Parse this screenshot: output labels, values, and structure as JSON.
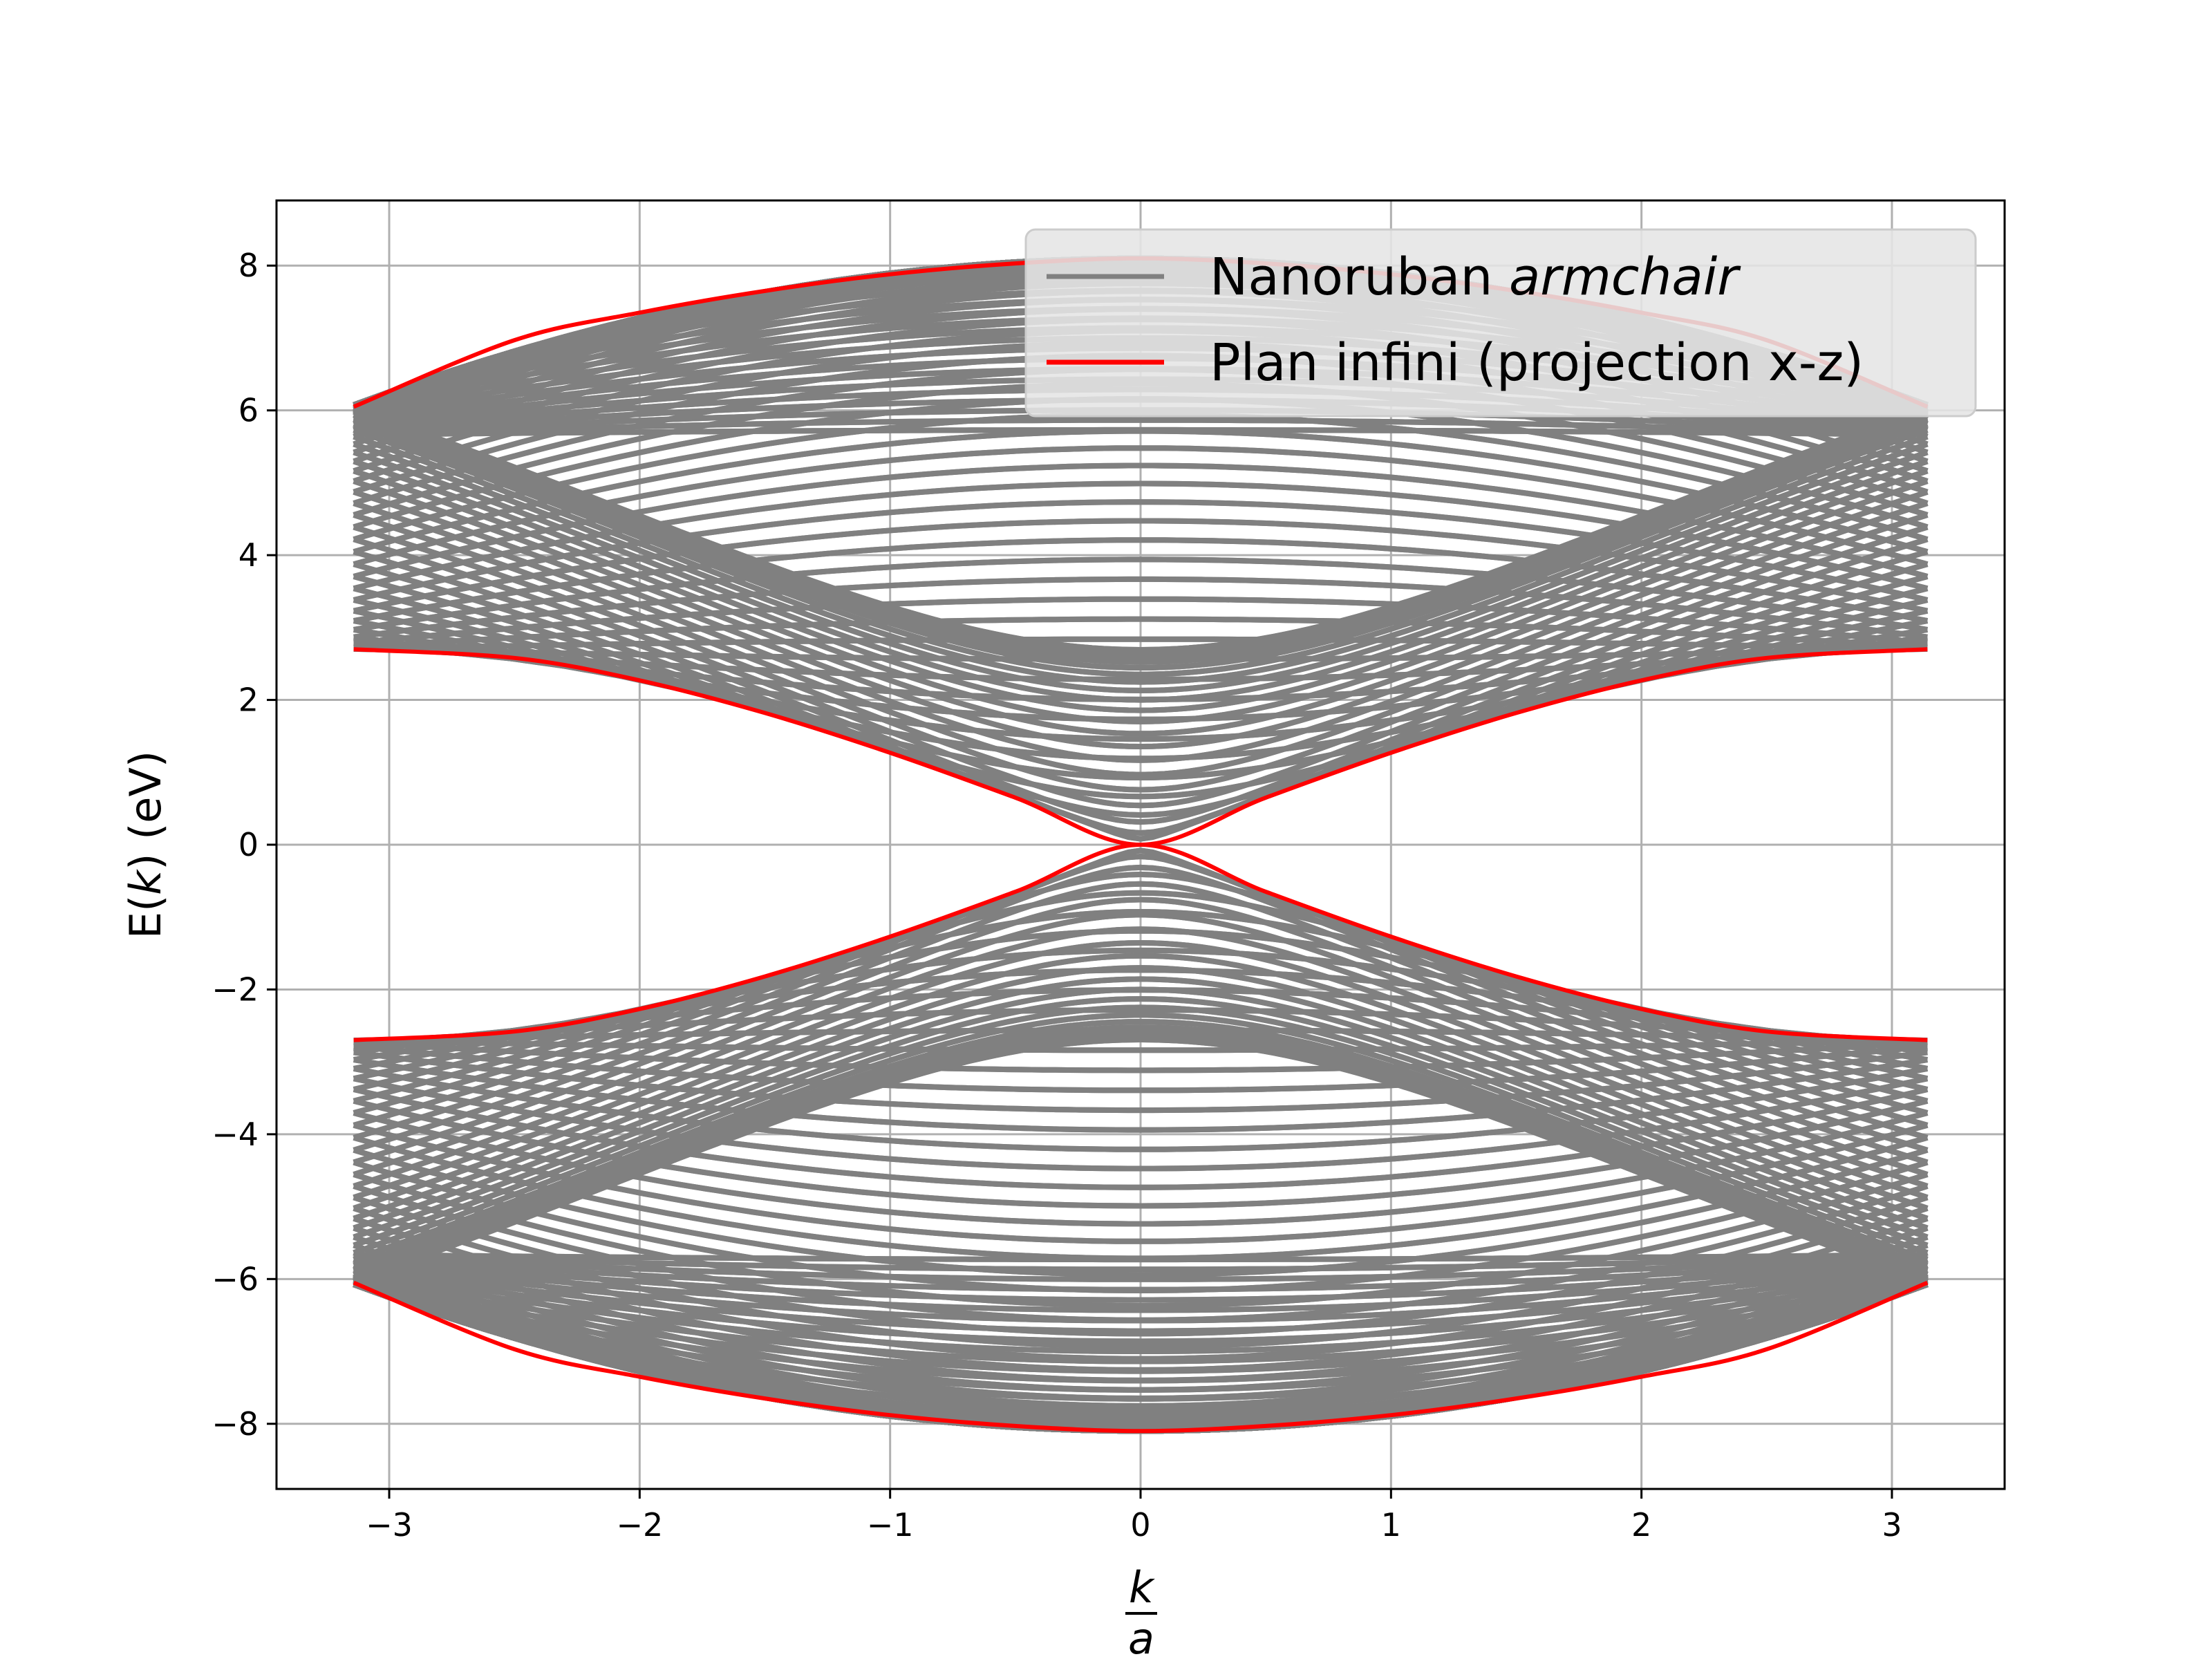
{
  "chart_data": {
    "type": "line",
    "title": "",
    "xlabel_numerator": "k",
    "xlabel_denominator": "a",
    "ylabel_prefix": "E(",
    "ylabel_var": "k",
    "ylabel_suffix": ") (eV)",
    "xlim": [
      -3.45,
      3.45
    ],
    "ylim": [
      -8.9,
      8.9
    ],
    "x_range": [
      -3.1416,
      3.1416
    ],
    "xticks": [
      -3,
      -2,
      -1,
      0,
      1,
      2,
      3
    ],
    "xtick_labels": [
      "−3",
      "−2",
      "−1",
      "0",
      "1",
      "2",
      "3"
    ],
    "yticks": [
      -8,
      -6,
      -4,
      -2,
      0,
      2,
      4,
      6,
      8
    ],
    "ytick_labels": [
      "−8",
      "−6",
      "−4",
      "−2",
      "0",
      "2",
      "4",
      "6",
      "8"
    ],
    "grid": true,
    "legend_position": "top-right",
    "series": [
      {
        "name_plain": "Nanoruban ",
        "name_italic": "armchair",
        "color": "#808080",
        "description_band": {
          "conduction_band_bottom_at_k0": 0.7,
          "valence_band_top_at_k0": -0.7,
          "band_count_per_branch": 60
        }
      },
      {
        "name_plain": "Plan infini (projection x-z)",
        "color": "#ff0000",
        "x": [
          -3.1416,
          -2.5,
          -2.0,
          -1.5,
          -1.0,
          -0.5,
          0.0,
          0.5,
          1.0,
          1.5,
          2.0,
          2.5,
          3.1416
        ],
        "upper_outer": [
          6.05,
          6.97,
          7.35,
          7.65,
          7.88,
          8.03,
          8.1,
          8.03,
          7.88,
          7.65,
          7.35,
          6.97,
          6.05
        ],
        "upper_inner": [
          2.7,
          2.58,
          2.27,
          1.82,
          1.27,
          0.65,
          0.0,
          0.65,
          1.27,
          1.82,
          2.27,
          2.58,
          2.7
        ],
        "lower_inner": [
          -2.7,
          -2.58,
          -2.27,
          -1.82,
          -1.27,
          -0.65,
          0.0,
          -0.65,
          -1.27,
          -1.82,
          -2.27,
          -2.58,
          -2.7
        ],
        "lower_outer": [
          -6.05,
          -6.97,
          -7.35,
          -7.65,
          -7.88,
          -8.03,
          -8.1,
          -8.03,
          -7.88,
          -7.65,
          -7.35,
          -6.97,
          -6.05
        ]
      }
    ]
  }
}
